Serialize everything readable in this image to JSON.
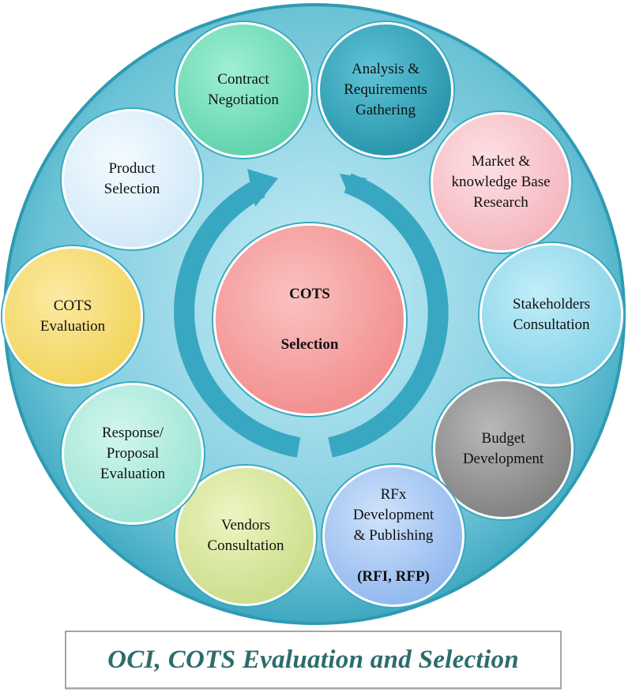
{
  "center": {
    "line1": "COTS",
    "line2": "Selection"
  },
  "nodes": [
    {
      "key": "contract",
      "label": "Contract\nNegotiation"
    },
    {
      "key": "analysis",
      "label": "Analysis &\nRequirements\nGathering"
    },
    {
      "key": "market",
      "label": "Market  &\nknowledge Base\nResearch"
    },
    {
      "key": "stakeholders",
      "label": "Stakeholders\nConsultation"
    },
    {
      "key": "budget",
      "label": "Budget\nDevelopment"
    },
    {
      "key": "rfx",
      "label": "RFx\nDevelopment\n& Publishing",
      "bold": "(RFI, RFP)"
    },
    {
      "key": "vendors",
      "label": "Vendors\nConsultation"
    },
    {
      "key": "response",
      "label": "Response/\nProposal\nEvaluation"
    },
    {
      "key": "cots_eval",
      "label": "COTS\nEvaluation"
    },
    {
      "key": "product",
      "label": "Product\nSelection"
    }
  ],
  "caption": "OCI, COTS Evaluation and Selection",
  "colors": {
    "outer_ring": "#4cb3c8",
    "inner_disc": "#8fd3e3",
    "contract": "#5fd6b0",
    "analysis": "#1f9db3",
    "market": "#f5b7c0",
    "stakeholders": "#8fd8ee",
    "budget": "#8a8a8a",
    "rfx": "#8fbaf0",
    "vendors": "#cfe08c",
    "response": "#9fe6d6",
    "cots_eval": "#f4d65c",
    "product": "#d8ecfb",
    "center": "#f28a8a",
    "caption_text": "#2d6c6c"
  }
}
